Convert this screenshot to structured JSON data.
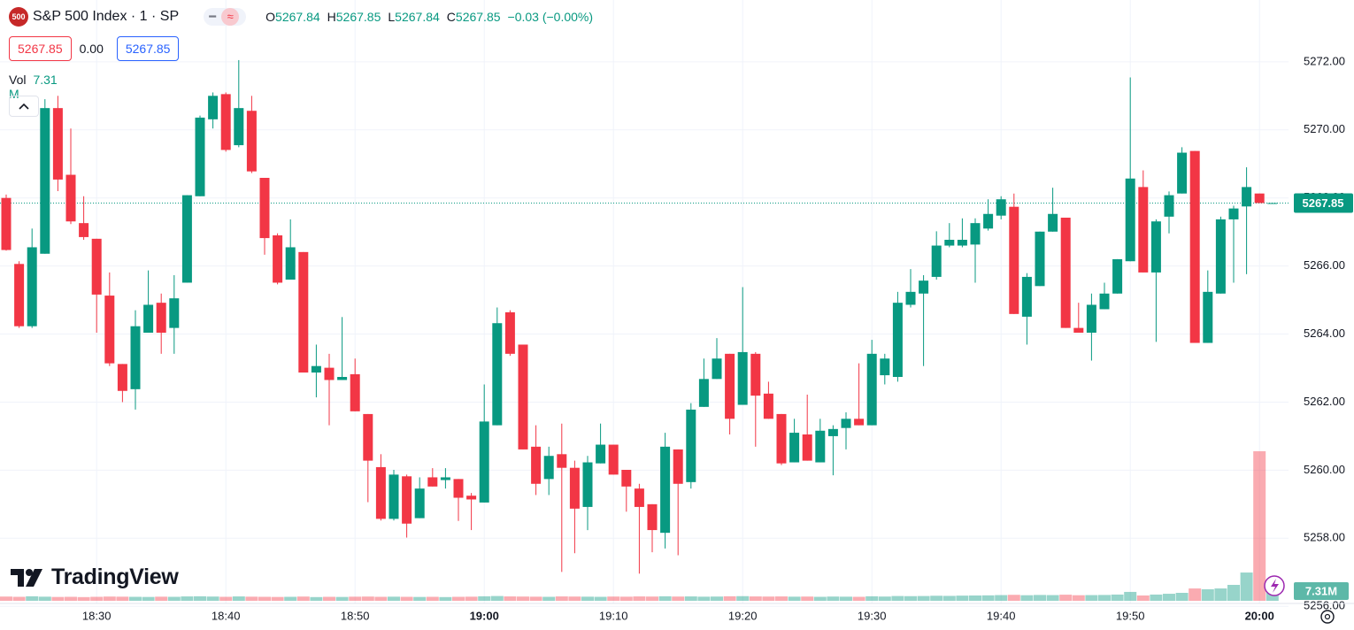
{
  "header": {
    "badge": "500",
    "title": "S&P 500 Index · 1 · SP",
    "ohlc": [
      {
        "label": "O",
        "value": "5267.84"
      },
      {
        "label": "H",
        "value": "5267.85"
      },
      {
        "label": "L",
        "value": "5267.84"
      },
      {
        "label": "C",
        "value": "5267.85"
      }
    ],
    "change": "−0.03 (−0.00%)",
    "sell": "5267.85",
    "spread": "0.00",
    "buy": "5267.85",
    "vol_label": "Vol",
    "vol_value": "7.31 M"
  },
  "logo": "TradingView",
  "chart_data": {
    "type": "candlestick",
    "categories": [
      null,
      null,
      null,
      null,
      null,
      null,
      null,
      "18:30",
      null,
      null,
      null,
      null,
      null,
      null,
      null,
      null,
      null,
      "18:40",
      null,
      null,
      null,
      null,
      null,
      null,
      null,
      null,
      null,
      "18:50",
      null,
      null,
      null,
      null,
      null,
      null,
      null,
      null,
      null,
      "19:00",
      null,
      null,
      null,
      null,
      null,
      null,
      null,
      null,
      null,
      "19:10",
      null,
      null,
      null,
      null,
      null,
      null,
      null,
      null,
      null,
      "19:20",
      null,
      null,
      null,
      null,
      null,
      null,
      null,
      null,
      null,
      "19:30",
      null,
      null,
      null,
      null,
      null,
      null,
      null,
      null,
      null,
      "19:40",
      null,
      null,
      null,
      null,
      null,
      null,
      null,
      null,
      null,
      "19:50",
      null,
      null,
      null,
      null,
      null,
      null,
      null,
      null,
      null,
      "20:00",
      null
    ],
    "open": [
      5268.0,
      5266.06,
      5264.23,
      5266.36,
      5270.64,
      5268.68,
      5267.26,
      5266.8,
      5265.13,
      5263.12,
      5262.38,
      5264.04,
      5264.92,
      5264.18,
      5265.51,
      5268.05,
      5270.31,
      5271.05,
      5269.55,
      5270.56,
      5268.59,
      5266.9,
      5265.6,
      5266.41,
      5262.87,
      5263.01,
      5262.65,
      5262.82,
      5261.65,
      5260.09,
      5258.57,
      5259.82,
      5258.59,
      5259.79,
      5259.71,
      5259.74,
      5259.25,
      5259.05,
      5261.32,
      5264.64,
      5263.69,
      5260.69,
      5259.74,
      5260.47,
      5260.07,
      5258.92,
      5260.2,
      5260.75,
      5260.01,
      5259.46,
      5259.0,
      5258.16,
      5260.61,
      5259.65,
      5261.86,
      5262.68,
      5263.42,
      5261.92,
      5263.42,
      5262.25,
      5261.65,
      5260.23,
      5261.05,
      5260.23,
      5261.0,
      5261.24,
      5261.51,
      5261.32,
      5262.79,
      5262.74,
      5264.86,
      5265.19,
      5265.68,
      5266.6,
      5266.6,
      5266.63,
      5267.1,
      5267.48,
      5267.74,
      5264.51,
      5265.41,
      5267.01,
      5267.42,
      5264.18,
      5264.04,
      5264.73,
      5265.19,
      5266.14,
      5268.32,
      5265.81,
      5267.45,
      5268.13,
      5269.38,
      5263.74,
      5265.19,
      5267.37,
      5267.75,
      5268.13,
      5267.84
    ],
    "high": [
      5268.1,
      5266.14,
      5267.1,
      5270.9,
      5271.0,
      5270.04,
      5268.05,
      5266.8,
      5265.81,
      5263.12,
      5264.7,
      5265.87,
      5265.19,
      5265.73,
      5268.08,
      5270.42,
      5271.1,
      5271.1,
      5272.05,
      5271.0,
      5268.59,
      5266.96,
      5267.37,
      5266.41,
      5263.69,
      5263.42,
      5264.5,
      5263.28,
      5261.65,
      5260.47,
      5260.01,
      5259.87,
      5259.79,
      5260.06,
      5260.06,
      5259.74,
      5259.33,
      5262.52,
      5264.78,
      5264.7,
      5263.69,
      5261.32,
      5260.69,
      5261.37,
      5260.28,
      5260.42,
      5261.37,
      5260.75,
      5260.01,
      5259.6,
      5259.0,
      5261.1,
      5260.61,
      5261.97,
      5263.28,
      5263.88,
      5263.42,
      5265.38,
      5263.47,
      5262.6,
      5261.65,
      5261.51,
      5262.22,
      5261.51,
      5261.32,
      5261.7,
      5263.14,
      5263.83,
      5263.42,
      5265.24,
      5265.91,
      5265.73,
      5267.02,
      5267.26,
      5267.4,
      5267.4,
      5267.96,
      5268.05,
      5268.13,
      5265.79,
      5267.01,
      5268.3,
      5267.42,
      5264.92,
      5265.19,
      5265.51,
      5266.2,
      5271.54,
      5268.81,
      5267.37,
      5268.19,
      5269.49,
      5269.38,
      5265.87,
      5267.45,
      5267.77,
      5268.9,
      5268.13,
      5267.85
    ],
    "low": [
      5266.45,
      5264.18,
      5264.18,
      5266.36,
      5268.2,
      5267.23,
      5266.77,
      5264.04,
      5263.06,
      5262.0,
      5261.78,
      5264.04,
      5263.42,
      5263.42,
      5265.51,
      5268.05,
      5270.04,
      5269.36,
      5269.49,
      5268.73,
      5266.33,
      5265.46,
      5265.6,
      5262.87,
      5262.14,
      5261.32,
      5262.65,
      5261.73,
      5259.06,
      5258.52,
      5258.52,
      5258.02,
      5258.59,
      5259.52,
      5259.46,
      5258.51,
      5258.24,
      5259.05,
      5261.32,
      5263.36,
      5260.61,
      5259.27,
      5259.27,
      5257.01,
      5257.56,
      5258.24,
      5260.2,
      5259.87,
      5258.78,
      5256.96,
      5257.59,
      5257.7,
      5257.5,
      5259.46,
      5261.86,
      5262.68,
      5261.05,
      5261.92,
      5260.69,
      5261.51,
      5260.15,
      5260.23,
      5260.28,
      5260.23,
      5259.85,
      5260.61,
      5261.32,
      5261.32,
      5262.52,
      5262.6,
      5264.78,
      5263.06,
      5265.6,
      5266.55,
      5266.55,
      5265.51,
      5267.04,
      5267.37,
      5264.59,
      5263.69,
      5265.41,
      5267.01,
      5264.18,
      5264.04,
      5263.22,
      5264.73,
      5265.19,
      5266.14,
      5265.81,
      5263.77,
      5266.96,
      5268.13,
      5263.74,
      5263.74,
      5265.19,
      5265.51,
      5265.76,
      5267.85,
      5267.84
    ],
    "close": [
      5266.47,
      5264.23,
      5266.55,
      5270.64,
      5268.54,
      5267.31,
      5266.85,
      5265.16,
      5263.14,
      5262.33,
      5264.23,
      5264.86,
      5264.04,
      5265.05,
      5268.08,
      5270.36,
      5271.0,
      5269.41,
      5270.64,
      5268.78,
      5266.82,
      5265.51,
      5266.55,
      5262.87,
      5263.06,
      5262.65,
      5262.74,
      5261.73,
      5260.28,
      5258.57,
      5259.87,
      5258.43,
      5259.46,
      5259.52,
      5259.79,
      5259.19,
      5259.14,
      5261.43,
      5264.32,
      5263.42,
      5260.61,
      5259.6,
      5260.42,
      5260.07,
      5258.87,
      5260.23,
      5260.75,
      5259.87,
      5259.52,
      5258.92,
      5258.24,
      5260.69,
      5259.6,
      5261.78,
      5262.68,
      5263.28,
      5261.51,
      5263.47,
      5262.19,
      5261.51,
      5260.2,
      5261.1,
      5260.28,
      5261.16,
      5261.21,
      5261.51,
      5261.32,
      5263.42,
      5263.28,
      5264.92,
      5265.24,
      5265.57,
      5266.6,
      5266.77,
      5266.77,
      5267.26,
      5267.53,
      5267.96,
      5264.59,
      5265.68,
      5267.01,
      5267.53,
      5264.18,
      5264.04,
      5264.86,
      5265.19,
      5266.2,
      5268.57,
      5265.81,
      5267.31,
      5268.08,
      5269.33,
      5263.74,
      5265.24,
      5267.37,
      5267.69,
      5268.32,
      5267.85,
      5267.85
    ],
    "volume": [
      3.2,
      3.0,
      3.4,
      3.1,
      2.9,
      3.0,
      2.8,
      3.0,
      3.2,
      3.1,
      3.0,
      2.9,
      3.1,
      3.0,
      3.3,
      3.4,
      3.2,
      3.0,
      3.3,
      3.1,
      3.0,
      2.9,
      3.0,
      3.2,
      2.8,
      3.0,
      2.9,
      3.1,
      3.2,
      3.0,
      3.1,
      3.0,
      2.9,
      3.0,
      2.8,
      3.0,
      3.1,
      3.4,
      3.6,
      3.3,
      3.2,
      3.1,
      3.0,
      3.3,
      3.2,
      3.1,
      3.0,
      3.2,
      3.1,
      3.3,
      3.2,
      3.4,
      3.2,
      3.3,
      3.1,
      3.2,
      3.4,
      3.5,
      3.3,
      3.2,
      3.3,
      3.1,
      3.2,
      3.0,
      3.2,
      3.1,
      3.0,
      3.4,
      3.2,
      3.6,
      3.5,
      3.6,
      3.8,
      3.7,
      3.9,
      4.0,
      4.1,
      4.3,
      4.5,
      4.2,
      4.4,
      4.3,
      4.6,
      4.2,
      4.3,
      4.4,
      4.7,
      6.7,
      4.0,
      4.7,
      5.3,
      6.0,
      9.3,
      8.7,
      9.3,
      12.0,
      21.3,
      112.7,
      7.31
    ],
    "last_volume_label": "7.31M",
    "ylim": [
      5256.37,
      5272.36
    ],
    "yticks": [
      {
        "value": 5256,
        "label": "5256.00"
      },
      {
        "value": 5258,
        "label": "5258.00"
      },
      {
        "value": 5260,
        "label": "5260.00"
      },
      {
        "value": 5262,
        "label": "5262.00"
      },
      {
        "value": 5264,
        "label": "5264.00"
      },
      {
        "value": 5266,
        "label": "5266.00"
      },
      {
        "value": 5268,
        "label": "5268.00"
      },
      {
        "value": 5270,
        "label": "5270.00"
      },
      {
        "value": 5272,
        "label": "5272.00"
      }
    ],
    "grid": true,
    "up_color": "#089981",
    "down_color": "#f23645"
  }
}
